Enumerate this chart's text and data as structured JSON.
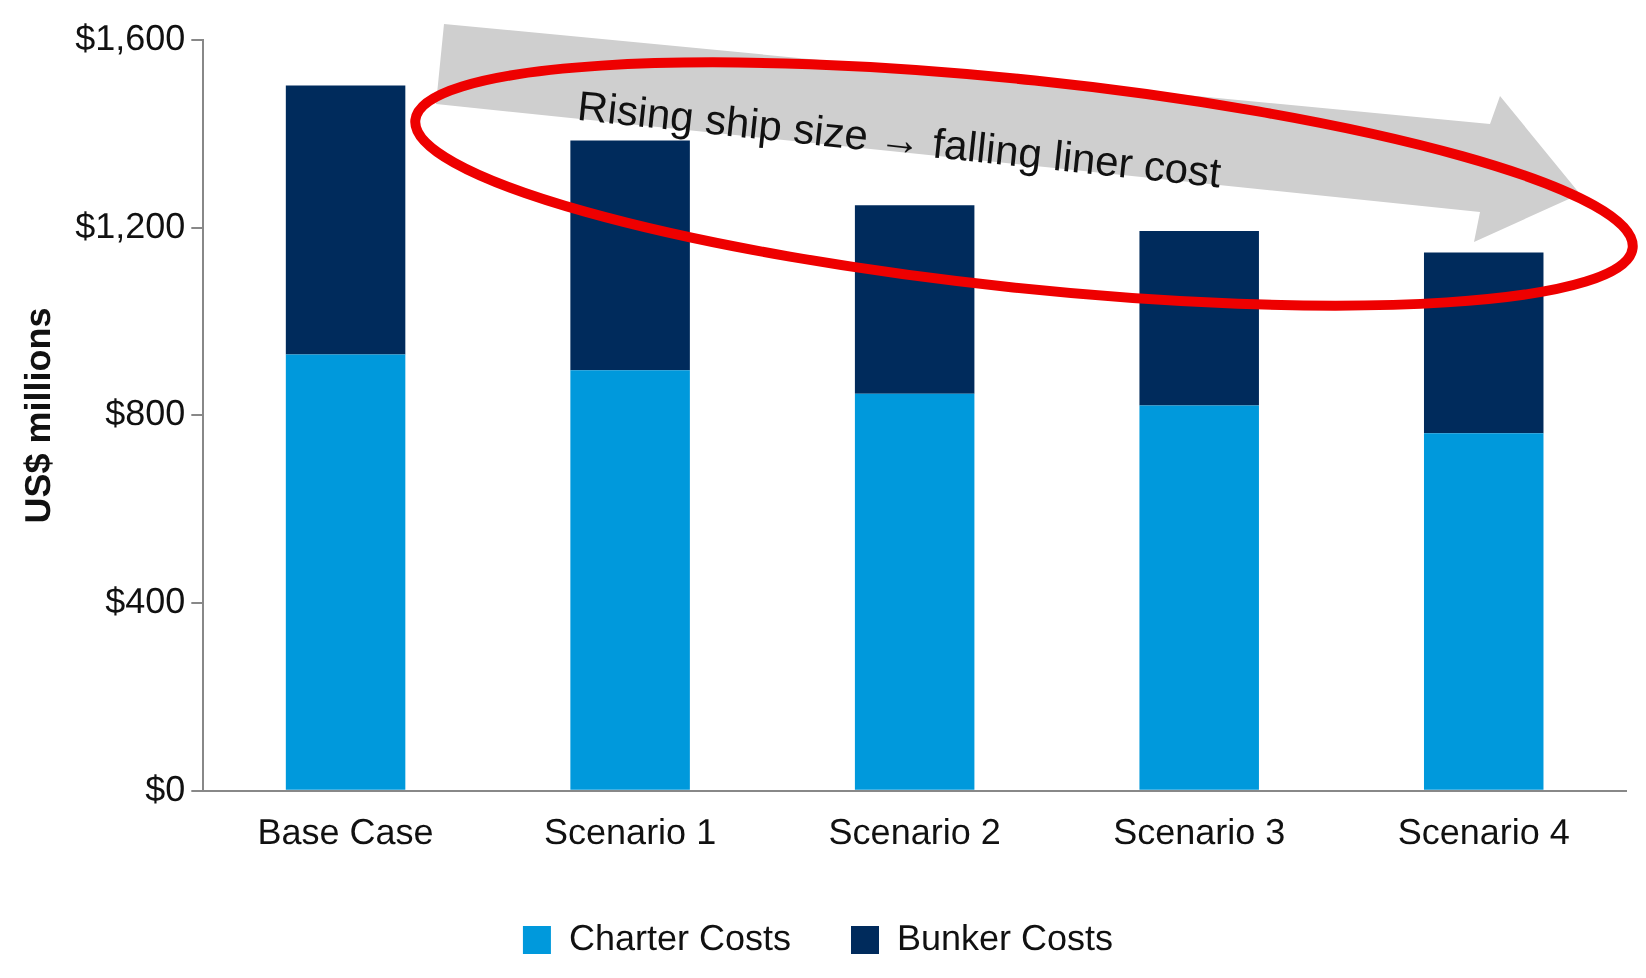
{
  "chart_data": {
    "type": "bar",
    "stacked": true,
    "ylabel": "US$ millions",
    "categories": [
      "Base Case",
      "Scenario 1",
      "Scenario 2",
      "Scenario 3",
      "Scenario 4"
    ],
    "series": [
      {
        "name": "Charter Costs",
        "color": "#0099dc",
        "values": [
          930,
          896,
          846,
          821,
          762
        ]
      },
      {
        "name": "Bunker Costs",
        "color": "#002b5c",
        "values": [
          573,
          490,
          402,
          372,
          385
        ]
      }
    ],
    "ylim": [
      0,
      1600
    ],
    "yticks": [
      {
        "value": 0,
        "label": "$0"
      },
      {
        "value": 400,
        "label": "$400"
      },
      {
        "value": 800,
        "label": "$800"
      },
      {
        "value": 1200,
        "label": "$1,200"
      },
      {
        "value": 1600,
        "label": "$1,600"
      }
    ],
    "grid": false,
    "legend": "bottom",
    "annotations": [
      "Rising ship size → falling liner cost"
    ]
  }
}
